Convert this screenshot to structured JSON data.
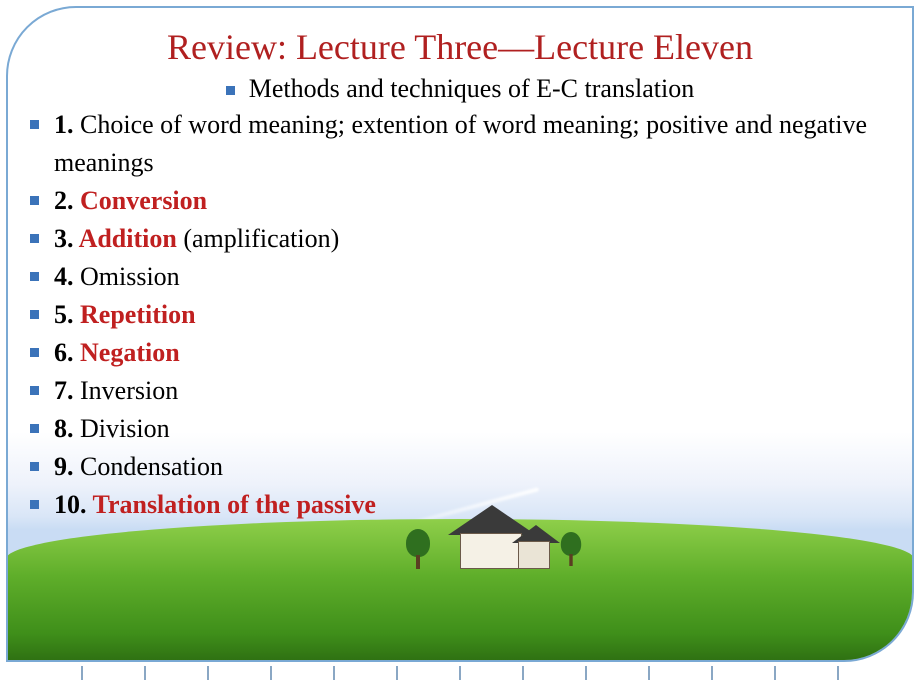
{
  "colors": {
    "title": "#b02020",
    "highlight": "#c02020",
    "bullet": "#3b73b9",
    "text": "#000000",
    "frame_border": "#7aa9d4"
  },
  "typography": {
    "title_fontsize": 36,
    "body_fontsize": 26,
    "font_family": "Times New Roman"
  },
  "title": "Review: Lecture Three—Lecture Eleven",
  "subtitle": "Methods and techniques of E-C translation",
  "items": [
    {
      "num": "1.",
      "plain": " Choice of word meaning; extention of word meaning; positive and negative meanings",
      "highlight": "",
      "suffix": ""
    },
    {
      "num": "2.",
      "plain": "",
      "highlight": " Conversion",
      "suffix": ""
    },
    {
      "num": "3.",
      "plain": "",
      "highlight": " Addition",
      "suffix": " (amplification)"
    },
    {
      "num": "4.",
      "plain": " Omission",
      "highlight": "",
      "suffix": ""
    },
    {
      "num": "5.",
      "plain": "",
      "highlight": " Repetition",
      "suffix": ""
    },
    {
      "num": "6.",
      "plain": "",
      "highlight": " Negation",
      "suffix": ""
    },
    {
      "num": "7.",
      "plain": " Inversion",
      "highlight": "",
      "suffix": ""
    },
    {
      "num": "8.",
      "plain": " Division",
      "highlight": "",
      "suffix": ""
    },
    {
      "num": "9.",
      "plain": " Condensation",
      "highlight": "",
      "suffix": ""
    },
    {
      "num": "10.",
      "plain": "",
      "highlight": " Translation of the passive",
      "suffix": ""
    }
  ],
  "tick_count": 13
}
